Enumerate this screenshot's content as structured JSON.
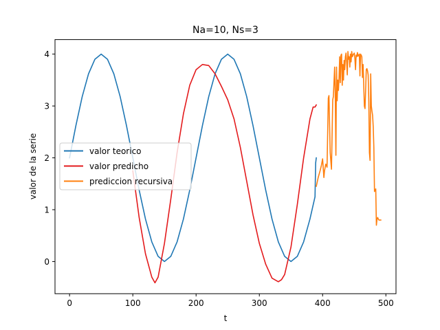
{
  "chart_data": {
    "type": "line",
    "title": "Na=10, Ns=3",
    "xlabel": "t",
    "ylabel": "valor de la serie",
    "xlim": [
      -23,
      516
    ],
    "ylim": [
      -0.62,
      4.28
    ],
    "xticks": [
      0,
      100,
      200,
      300,
      400,
      500
    ],
    "yticks": [
      0,
      1,
      2,
      3,
      4
    ],
    "grid": false,
    "legend_position": "center-left",
    "series": [
      {
        "name": "valor teorico",
        "color": "#1f77b4",
        "x": [
          0,
          10,
          20,
          30,
          40,
          50,
          60,
          70,
          80,
          90,
          100,
          110,
          120,
          130,
          140,
          150,
          160,
          170,
          180,
          190,
          200,
          210,
          220,
          230,
          240,
          250,
          260,
          270,
          280,
          290,
          300,
          310,
          320,
          330,
          340,
          350,
          360,
          370,
          380,
          388,
          389,
          390
        ],
        "y": [
          2.0,
          2.62,
          3.18,
          3.62,
          3.9,
          4.0,
          3.9,
          3.62,
          3.18,
          2.62,
          2.0,
          1.38,
          0.82,
          0.38,
          0.1,
          0.0,
          0.1,
          0.38,
          0.82,
          1.38,
          2.0,
          2.62,
          3.18,
          3.62,
          3.9,
          4.0,
          3.9,
          3.62,
          3.18,
          2.62,
          2.0,
          1.38,
          0.82,
          0.38,
          0.1,
          0.0,
          0.1,
          0.38,
          0.82,
          1.25,
          1.9,
          2.0
        ]
      },
      {
        "name": "valor predicho",
        "color": "#e31a1c",
        "x": [
          100,
          110,
          120,
          130,
          135,
          140,
          150,
          160,
          170,
          180,
          190,
          200,
          210,
          220,
          230,
          240,
          250,
          260,
          270,
          280,
          290,
          300,
          310,
          320,
          330,
          335,
          340,
          350,
          360,
          370,
          380,
          385,
          388,
          390
        ],
        "y": [
          1.75,
          0.85,
          0.15,
          -0.3,
          -0.41,
          -0.3,
          0.35,
          1.2,
          2.1,
          2.85,
          3.4,
          3.7,
          3.8,
          3.78,
          3.62,
          3.38,
          3.12,
          2.75,
          2.2,
          1.55,
          0.9,
          0.35,
          -0.05,
          -0.32,
          -0.39,
          -0.35,
          -0.25,
          0.28,
          1.1,
          2.0,
          2.75,
          2.98,
          2.98,
          3.02
        ]
      },
      {
        "name": "prediccion recursiva",
        "color": "#ff7f0e",
        "x": [
          390,
          393,
          396,
          398,
          400,
          402,
          403,
          405,
          407,
          409,
          410,
          412,
          414,
          416,
          417,
          419,
          420,
          421,
          422,
          423,
          424,
          425,
          426,
          427,
          428,
          429,
          430,
          431,
          432,
          433,
          434,
          435,
          436,
          437,
          438,
          439,
          440,
          441,
          442,
          443,
          444,
          445,
          446,
          447,
          448,
          449,
          450,
          451,
          452,
          453,
          454,
          455,
          456,
          457,
          458,
          459,
          460,
          461,
          462,
          463,
          464,
          465,
          466,
          467,
          468,
          469,
          470,
          471,
          472,
          473,
          474,
          475,
          476,
          477,
          478,
          479,
          480,
          481,
          482,
          483,
          484,
          485,
          486,
          487,
          488,
          489,
          490,
          491,
          492
        ],
        "y": [
          1.45,
          1.62,
          1.75,
          1.85,
          1.98,
          1.62,
          1.75,
          1.88,
          1.82,
          3.15,
          3.2,
          2.1,
          1.78,
          3.12,
          3.18,
          3.75,
          3.2,
          2.05,
          3.75,
          3.1,
          3.5,
          3.3,
          3.55,
          3.95,
          3.45,
          3.98,
          4.0,
          3.4,
          3.8,
          3.5,
          3.88,
          3.7,
          3.95,
          4.02,
          3.85,
          3.6,
          4.05,
          3.9,
          3.95,
          3.75,
          4.0,
          3.85,
          4.05,
          3.95,
          3.98,
          4.0,
          4.02,
          3.92,
          3.7,
          3.98,
          3.95,
          4.03,
          3.96,
          3.98,
          4.0,
          3.58,
          4.0,
          3.98,
          3.95,
          3.55,
          3.8,
          3.4,
          3.0,
          2.95,
          3.3,
          3.7,
          3.72,
          3.68,
          3.6,
          3.1,
          2.1,
          1.95,
          3.62,
          3.0,
          2.9,
          2.82,
          2.6,
          2.2,
          1.35,
          1.38,
          1.4,
          0.7,
          0.82,
          0.85,
          0.82,
          0.8,
          0.8,
          0.8,
          0.8
        ]
      }
    ]
  }
}
